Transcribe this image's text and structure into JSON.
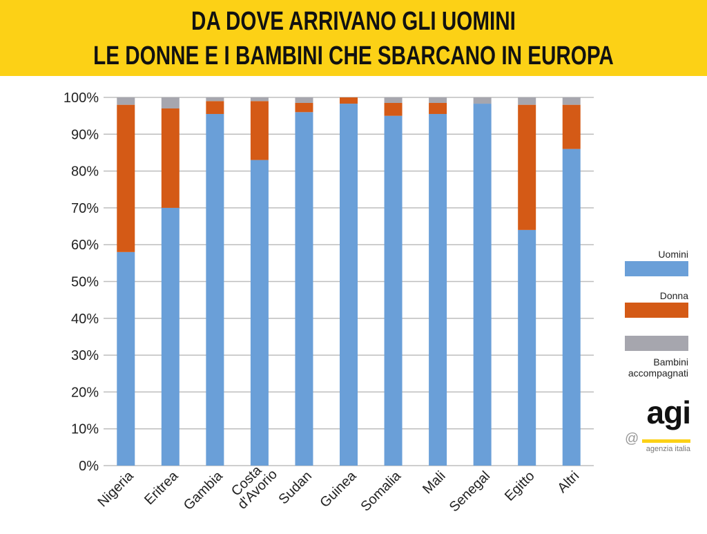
{
  "header": {
    "title_line1": "DA DOVE ARRIVANO GLI UOMINI",
    "title_line2": "LE DONNE E I BAMBINI CHE SBARCANO IN EUROPA",
    "background": "#fcd116"
  },
  "chart_data": {
    "type": "bar",
    "stacked": true,
    "percent": true,
    "title": "DA DOVE ARRIVANO GLI UOMINI LE DONNE E I BAMBINI CHE SBARCANO IN EUROPA",
    "categories": [
      "Nigeria",
      "Eritrea",
      "Gambia",
      "Costa d'Avorio",
      "Sudan",
      "Guinea",
      "Somalia",
      "Mali",
      "Senegal",
      "Egitto",
      "Altri"
    ],
    "series": [
      {
        "name": "Uomini",
        "color": "#6a9fd8",
        "values": [
          58,
          70,
          95.5,
          83,
          96,
          98.3,
          95,
          95.5,
          98.3,
          64,
          86
        ]
      },
      {
        "name": "Donna",
        "color": "#d45a16",
        "values": [
          40,
          27,
          3.5,
          16,
          2.5,
          1.7,
          3.5,
          3,
          0,
          34,
          12
        ]
      },
      {
        "name": "Bambini accompagnati",
        "color": "#a6a6ae",
        "values": [
          2,
          3,
          1,
          1,
          1.5,
          0,
          1.5,
          1.5,
          1.7,
          2,
          2
        ]
      }
    ],
    "ylim": [
      0,
      100
    ],
    "yticks": [
      "0%",
      "10%",
      "20%",
      "30%",
      "40%",
      "50%",
      "60%",
      "70%",
      "80%",
      "90%",
      "100%"
    ],
    "grid": true,
    "legend_position": "right"
  },
  "legend": {
    "uomini": "Uomini",
    "donna": "Donna",
    "bambini_line1": "Bambini",
    "bambini_line2": "accompagnati"
  },
  "logo": {
    "brand": "agi",
    "tagline": "agenzia italia",
    "at": "@"
  }
}
